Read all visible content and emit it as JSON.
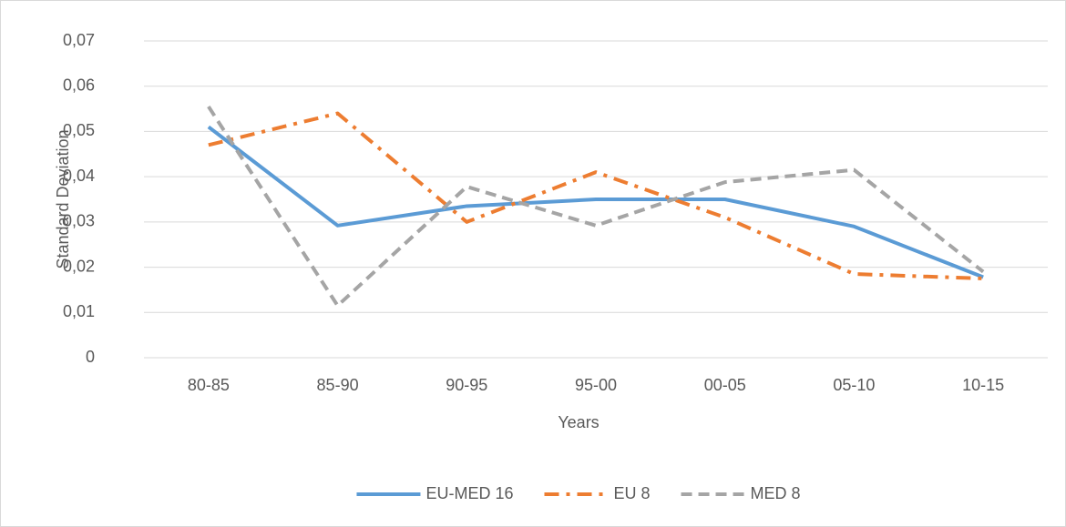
{
  "chart_data": {
    "type": "line",
    "y_label": "Standard Deviation",
    "x_label": "Years",
    "categories": [
      "80-85",
      "85-90",
      "90-95",
      "95-00",
      "00-05",
      "05-10",
      "10-15"
    ],
    "series": [
      {
        "name": "EU-MED 16",
        "color": "#5b9bd5",
        "dash": "solid",
        "values": [
          0.051,
          0.0292,
          0.0335,
          0.035,
          0.035,
          0.029,
          0.0178
        ]
      },
      {
        "name": "EU 8",
        "color": "#ed7d31",
        "dash": "dashdot",
        "values": [
          0.047,
          0.054,
          0.03,
          0.041,
          0.031,
          0.0185,
          0.0175
        ]
      },
      {
        "name": "MED 8",
        "color": "#a5a5a5",
        "dash": "dashed",
        "values": [
          0.0555,
          0.0115,
          0.0378,
          0.0292,
          0.0388,
          0.0415,
          0.019
        ]
      }
    ],
    "ylim": [
      0,
      0.07
    ],
    "yticks": [
      0,
      {
        "value": 0.01,
        "label": "0,01"
      },
      {
        "value": 0.02,
        "label": "0,02"
      },
      {
        "value": 0.03,
        "label": "0,03"
      },
      {
        "value": 0.04,
        "label": "0,04"
      },
      {
        "value": 0.05,
        "label": "0,05"
      },
      {
        "value": 0.06,
        "label": "0,06"
      },
      {
        "value": 0.07,
        "label": "0,07"
      }
    ],
    "grid": true,
    "legend": "bottom"
  }
}
